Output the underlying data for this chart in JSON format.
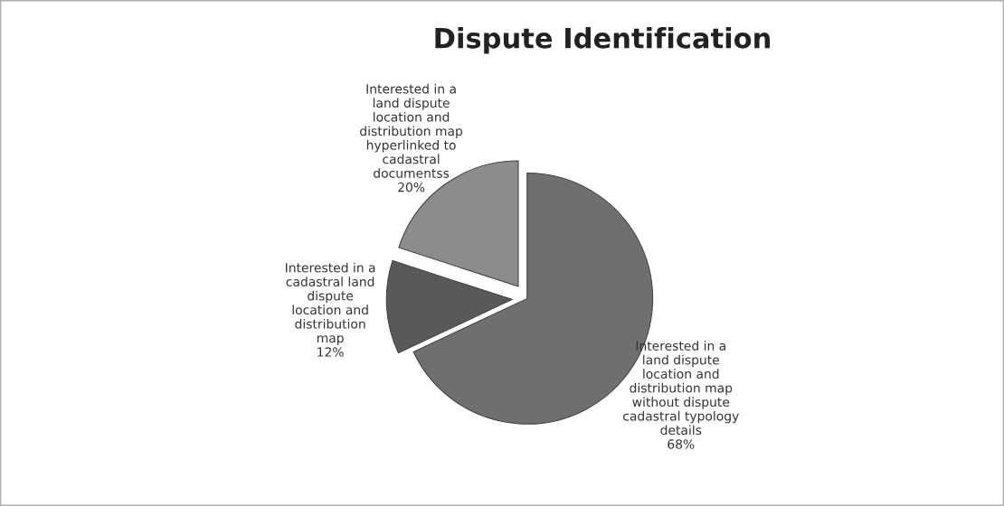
{
  "chart_data": {
    "type": "pie",
    "title": "Dispute Identification",
    "categories": [
      "Interested in a\nland dispute\nlocation and\ndistribution map\nwithout dispute\ncadastral typology\ndetails",
      "Interested in a\ncadastral land\ndispute\nlocation and\ndistribution\nmap",
      "Interested in a\nland dispute\nlocation and\ndistribution map\nhyperlinked to\ncadastral\ndocumentss"
    ],
    "values": [
      68,
      12,
      20
    ],
    "value_labels": [
      "68%",
      "12%",
      "20%"
    ],
    "colors": [
      "#6f6f6f",
      "#595959",
      "#8c8c8c"
    ]
  }
}
